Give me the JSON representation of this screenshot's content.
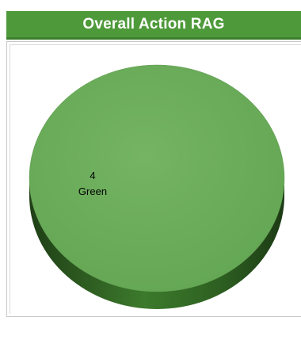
{
  "title": "Overall Action RAG",
  "colors": {
    "header": "#4e9a3a",
    "slice_green": "#6aaa5a",
    "slice_green_dark": "#2f5e22"
  },
  "chart_data": {
    "type": "pie",
    "title": "Overall Action RAG",
    "slices": [
      {
        "label": "Green",
        "value": 4,
        "color": "#6aaa5a"
      }
    ]
  }
}
